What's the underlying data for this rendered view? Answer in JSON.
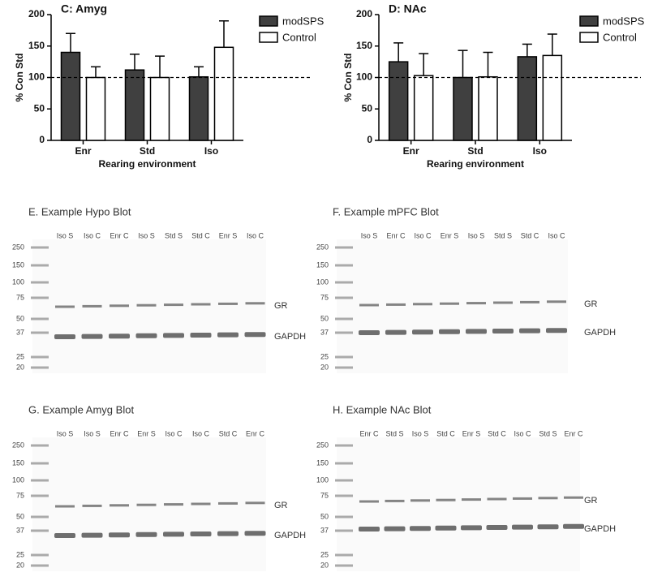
{
  "chart_data": [
    {
      "type": "bar",
      "title": "C: Amyg",
      "y_label": "% Con Std",
      "x_label": "Rearing environment",
      "categories": [
        "Enr",
        "Std",
        "Iso"
      ],
      "series": [
        {
          "name": "modSPS",
          "color": "#404040",
          "values": [
            140,
            112,
            101
          ],
          "errors": [
            30,
            25,
            16
          ]
        },
        {
          "name": "Control",
          "color": "#ffffff",
          "values": [
            100,
            100,
            148
          ],
          "errors": [
            17,
            34,
            42
          ]
        }
      ],
      "ylim": [
        0,
        200
      ],
      "yticks": [
        0,
        50,
        100,
        150,
        200
      ],
      "reference_line": 100,
      "legend": "right"
    },
    {
      "type": "bar",
      "title": "D: NAc",
      "y_label": "% Con Std",
      "x_label": "Rearing environment",
      "categories": [
        "Enr",
        "Std",
        "Iso"
      ],
      "series": [
        {
          "name": "modSPS",
          "color": "#404040",
          "values": [
            125,
            100,
            133
          ],
          "errors": [
            30,
            43,
            20
          ]
        },
        {
          "name": "Control",
          "color": "#ffffff",
          "values": [
            103,
            101,
            135
          ],
          "errors": [
            35,
            39,
            34
          ]
        }
      ],
      "ylim": [
        0,
        200
      ],
      "yticks": [
        0,
        50,
        100,
        150,
        200
      ],
      "reference_line": 100,
      "legend": "right"
    }
  ],
  "blots": [
    {
      "title": "E. Example  Hypo Blot",
      "lanes": [
        "Iso S",
        "Iso C",
        "Enr C",
        "Iso S",
        "Std S",
        "Std C",
        "Enr S",
        "Iso C"
      ],
      "ladder": [
        250,
        150,
        100,
        75,
        50,
        37,
        25,
        20
      ],
      "bands": [
        "GR",
        "GAPDH"
      ]
    },
    {
      "title": "F. Example  mPFC Blot",
      "lanes": [
        "Iso S",
        "Enr C",
        "Iso C",
        "Enr S",
        "Iso S",
        "Std S",
        "Std C",
        "Iso C"
      ],
      "ladder": [
        250,
        150,
        100,
        75,
        50,
        37,
        25,
        20
      ],
      "bands": [
        "GR",
        "GAPDH"
      ]
    },
    {
      "title": "G. Example  Amyg Blot",
      "lanes": [
        "Iso S",
        "Iso S",
        "Enr C",
        "Enr S",
        "Iso C",
        "Iso C",
        "Std C",
        "Enr C"
      ],
      "ladder": [
        250,
        150,
        100,
        75,
        50,
        37,
        25,
        20
      ],
      "bands": [
        "GR",
        "GAPDH"
      ]
    },
    {
      "title": "H. Example  NAc Blot",
      "lanes": [
        "Enr C",
        "Std S",
        "Iso S",
        "Std C",
        "Enr S",
        "Std C",
        "Iso C",
        "Std S",
        "Enr C"
      ],
      "ladder": [
        250,
        150,
        100,
        75,
        50,
        37,
        25,
        20
      ],
      "bands": [
        "GR",
        "GAPDH"
      ]
    }
  ]
}
